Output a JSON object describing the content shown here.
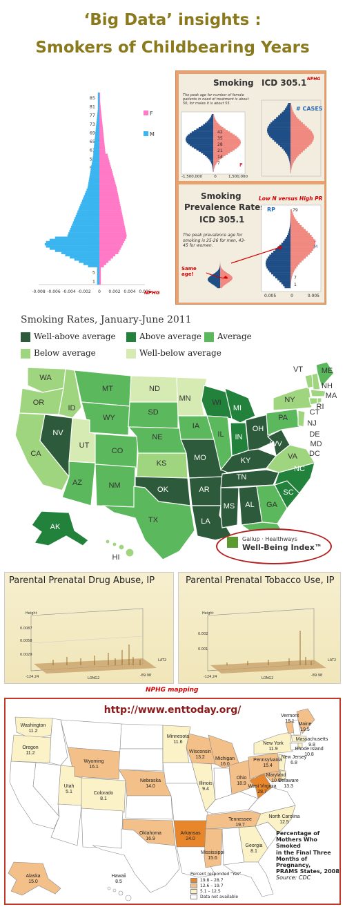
{
  "header": {
    "title_line1": "‘Big Data’ insights :",
    "title_line2": "Smokers of Childbearing Years"
  },
  "pyramid_chart": {
    "y_ticks": [
      "85",
      "81",
      "77",
      "73",
      "69",
      "65",
      "61",
      "57",
      "53",
      "49",
      "45",
      "41",
      "37",
      "33",
      "29",
      "25",
      "21",
      "17",
      "13",
      "9",
      "5",
      "1"
    ],
    "x_ticks": [
      "-0.008",
      "-0.006",
      "-0.004",
      "-0.002",
      "0",
      "0.002",
      "0.004",
      "0.006"
    ],
    "legend_f": "F",
    "legend_m": "M",
    "color_f": "#ff79c6",
    "color_m": "#3ab5f0",
    "watermark": "NPHG"
  },
  "slide_panel": {
    "top_title_smoking": "Smoking",
    "top_title_icd": "ICD 305.1",
    "top_badge": "NPHG",
    "top_note": "The peak age for number of female patients in need of treatment is about 50, for males it is about 55.",
    "cases_label": "# CASES",
    "ages_top": [
      "42",
      "35",
      "28",
      "21",
      "14",
      "7"
    ],
    "axis_top": [
      "-1,500,000",
      "0",
      "1,500,000"
    ],
    "f_label": "F",
    "bottom_title1": "Smoking",
    "bottom_title2": "Prevalence Rates",
    "bottom_title3": "ICD 305.1",
    "low_high": "Low N versus High PR",
    "rp_label": "RP",
    "bottom_note": "The peak prevalence age for smoking is 25-26 for men, 43-45 for women.",
    "same_age": "Same age!",
    "axis_bottom": [
      "0.005",
      "0",
      "0.005"
    ],
    "ages_bottom": [
      "79",
      "7",
      "1"
    ],
    "legend_bottom_f": "F",
    "legend_bottom_m": "M"
  },
  "us_map": {
    "title": "Smoking Rates, January-June 2011",
    "legend": [
      {
        "label": "Well-above average",
        "color": "#2d5a3a"
      },
      {
        "label": "Above average",
        "color": "#22823c"
      },
      {
        "label": "Average",
        "color": "#5cb85c"
      },
      {
        "label": "Below average",
        "color": "#9fd57f"
      },
      {
        "label": "Well-below average",
        "color": "#d6ebb3"
      }
    ],
    "states": {
      "WA": "WA",
      "OR": "OR",
      "CA": "CA",
      "NV": "NV",
      "ID": "ID",
      "MT": "MT",
      "WY": "WY",
      "UT": "UT",
      "AZ": "AZ",
      "CO": "CO",
      "NM": "NM",
      "ND": "ND",
      "SD": "SD",
      "NE": "NE",
      "KS": "KS",
      "OK": "OK",
      "TX": "TX",
      "MN": "MN",
      "IA": "IA",
      "MO": "MO",
      "AR": "AR",
      "LA": "LA",
      "WI": "WI",
      "IL": "IL",
      "MI": "MI",
      "IN": "IN",
      "OH": "OH",
      "KY": "KY",
      "TN": "TN",
      "MS": "MS",
      "AL": "AL",
      "GA": "GA",
      "FL": "FL",
      "SC": "SC",
      "NC": "NC",
      "VA": "VA",
      "WV": "WV",
      "PA": "PA",
      "NY": "NY",
      "VT": "VT",
      "NH": "NH",
      "ME": "ME",
      "MA": "MA",
      "RI": "RI",
      "CT": "CT",
      "NJ": "NJ",
      "DE": "DE",
      "MD": "MD",
      "DC": "DC",
      "AK": "AK",
      "HI": "HI"
    },
    "gallup_line1": "Gallup · Healthways",
    "gallup_line2": "Well-Being Index™"
  },
  "prenatal": {
    "left_title": "Parental Prenatal Drug Abuse, IP",
    "right_title": "Parental Prenatal Tobacco Use, IP",
    "caption": "NPHG mapping",
    "left_z": [
      "0.0087",
      "0.0058",
      "0.0029"
    ],
    "right_z": [
      "0.002",
      "0.001"
    ],
    "axis_left_x": [
      "-124.24",
      "LONG2",
      "-89.98"
    ],
    "axis_right_x": [
      "-124.24",
      "LONG2",
      "-89.98"
    ],
    "height_label": "Height",
    "lat_label": "LAT2"
  },
  "ent_map": {
    "url": "http://www.enttoday.org/",
    "states": [
      {
        "name": "Washington",
        "value": "11.2"
      },
      {
        "name": "Oregon",
        "value": "11.2"
      },
      {
        "name": "Minnesota",
        "value": "11.6"
      },
      {
        "name": "Wisconsin",
        "value": "13.2"
      },
      {
        "name": "Michigan",
        "value": "16.0"
      },
      {
        "name": "Wyoming",
        "value": "16.1"
      },
      {
        "name": "Nebraska",
        "value": "14.0"
      },
      {
        "name": "Utah",
        "value": "5.1"
      },
      {
        "name": "Colorado",
        "value": "8.1"
      },
      {
        "name": "Illinois",
        "value": "9.4"
      },
      {
        "name": "Ohio",
        "value": "18.9"
      },
      {
        "name": "West Virginia",
        "value": "28.7"
      },
      {
        "name": "Pennsylvania",
        "value": "15.4"
      },
      {
        "name": "Maryland",
        "value": "10.9"
      },
      {
        "name": "Delaware",
        "value": "13.3"
      },
      {
        "name": "New York",
        "value": "11.9"
      },
      {
        "name": "Vermont",
        "value": "18.1"
      },
      {
        "name": "Maine",
        "value": "19.5"
      },
      {
        "name": "Massachusetts",
        "value": "9.8"
      },
      {
        "name": "Rhode Island",
        "value": "10.8"
      },
      {
        "name": "New Jersey",
        "value": "6.8"
      },
      {
        "name": "Oklahoma",
        "value": "16.9"
      },
      {
        "name": "Arkansas",
        "value": "24.0"
      },
      {
        "name": "Tennessee",
        "value": "19.7"
      },
      {
        "name": "North Carolina",
        "value": "12.5"
      },
      {
        "name": "Mississippi",
        "value": "15.6"
      },
      {
        "name": "Georgia",
        "value": "8.1"
      },
      {
        "name": "Alaska",
        "value": "15.0"
      },
      {
        "name": "Hawaii",
        "value": "8.5"
      }
    ],
    "caption_lines": [
      "Percentage of",
      "Mothers Who Smoked",
      "in the Final Three",
      "Months of Pregnancy,",
      "PRAMS States, 2008"
    ],
    "source": "Source: CDC",
    "legend_title": "Percent responded \"Yes\"",
    "legend": [
      {
        "label": "19.8 – 28.7",
        "color": "#e8862c"
      },
      {
        "label": "12.6 – 19.7",
        "color": "#f4c08a"
      },
      {
        "label": "5.1 – 12.5",
        "color": "#fbf2c8"
      },
      {
        "label": "Data not available",
        "color": "#ffffff"
      }
    ]
  }
}
